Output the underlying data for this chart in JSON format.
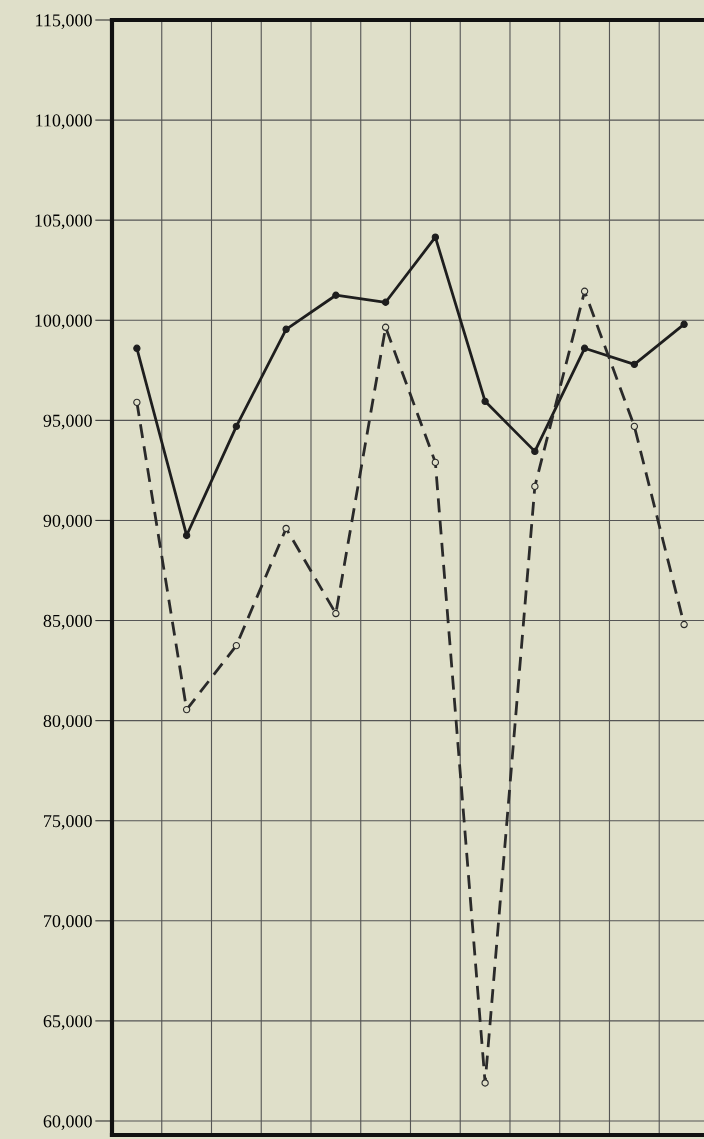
{
  "chart_data": {
    "type": "line",
    "categories": [
      null,
      null,
      null,
      null,
      null,
      null,
      null,
      null,
      null,
      null,
      null,
      null
    ],
    "series": [
      {
        "color": "#1e1e1e",
        "line_style": "solid",
        "marker": "circle",
        "values": [
          98600,
          89250,
          94700,
          99550,
          101250,
          100900,
          104150,
          95950,
          93450,
          98600,
          97800,
          99800
        ]
      },
      {
        "color": "#2a2a2a",
        "line_style": "dashed",
        "marker": "circle",
        "values": [
          95900,
          80550,
          83750,
          89600,
          85350,
          99650,
          92900,
          61900,
          91700,
          101450,
          94700,
          84800
        ]
      }
    ],
    "ylim": [
      59300,
      115000
    ],
    "yticks": [
      {
        "value": 60000,
        "label": "60,000"
      },
      {
        "value": 65000,
        "label": "65,000"
      },
      {
        "value": 70000,
        "label": "70,000"
      },
      {
        "value": 75000,
        "label": "75,000"
      },
      {
        "value": 80000,
        "label": "80,000"
      },
      {
        "value": 85000,
        "label": "85,000"
      },
      {
        "value": 90000,
        "label": "90,000"
      },
      {
        "value": 95000,
        "label": "95,000"
      },
      {
        "value": 100000,
        "label": "100,000"
      },
      {
        "value": 105000,
        "label": "105,000"
      },
      {
        "value": 110000,
        "label": "110,000"
      },
      {
        "value": 115000,
        "label": "115,000"
      }
    ],
    "grid": true,
    "tick_labels": "y"
  }
}
